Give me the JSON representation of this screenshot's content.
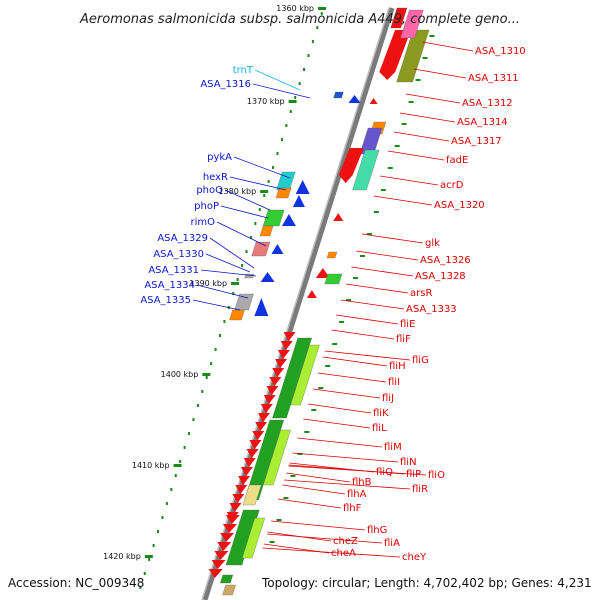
{
  "title": "Aeromonas salmonicida subsp. salmonicida A449, complete geno...",
  "footer": {
    "accession": "Accession: NC_009348",
    "summary": "Topology: circular; Length: 4,702,402 bp; Genes: 4,231"
  },
  "scale_labels": [
    "1360 kbp",
    "1370 kbp",
    "1380 kbp",
    "1390 kbp",
    "1400 kbp",
    "1410 kbp",
    "1420 kbp"
  ],
  "colors": {
    "backbone": "#7a7a7a",
    "left_labels": "#0a18c8",
    "right_labels": "#dd0000",
    "trna_label": "#1ab0e8",
    "tick": "#1a8a1a"
  },
  "left_genes": [
    {
      "label": "trnT",
      "kind": "trna"
    },
    {
      "label": "ASA_1316",
      "kind": "gene"
    },
    {
      "label": "pykA",
      "kind": "gene"
    },
    {
      "label": "hexR",
      "kind": "gene"
    },
    {
      "label": "phoQ",
      "kind": "gene"
    },
    {
      "label": "phoP",
      "kind": "gene"
    },
    {
      "label": "rimO",
      "kind": "gene"
    },
    {
      "label": "ASA_1329",
      "kind": "gene"
    },
    {
      "label": "ASA_1330",
      "kind": "gene"
    },
    {
      "label": "ASA_1331",
      "kind": "gene"
    },
    {
      "label": "ASA_1334",
      "kind": "gene"
    },
    {
      "label": "ASA_1335",
      "kind": "gene"
    }
  ],
  "right_genes": [
    "ASA_1310",
    "ASA_1311",
    "ASA_1312",
    "ASA_1314",
    "ASA_1317",
    "fadE",
    "acrD",
    "ASA_1320",
    "glk",
    "ASA_1326",
    "ASA_1328",
    "arsR",
    "ASA_1333",
    "fliE",
    "fliF",
    "fliG",
    "fliH",
    "fliI",
    "fliJ",
    "fliK",
    "fliL",
    "fliM",
    "fliN",
    "fliP",
    "fliO",
    "fliQ",
    "fliR",
    "flhB",
    "flhA",
    "flhF",
    "flhG",
    "fliA",
    "cheZ",
    "cheA",
    "cheY"
  ]
}
